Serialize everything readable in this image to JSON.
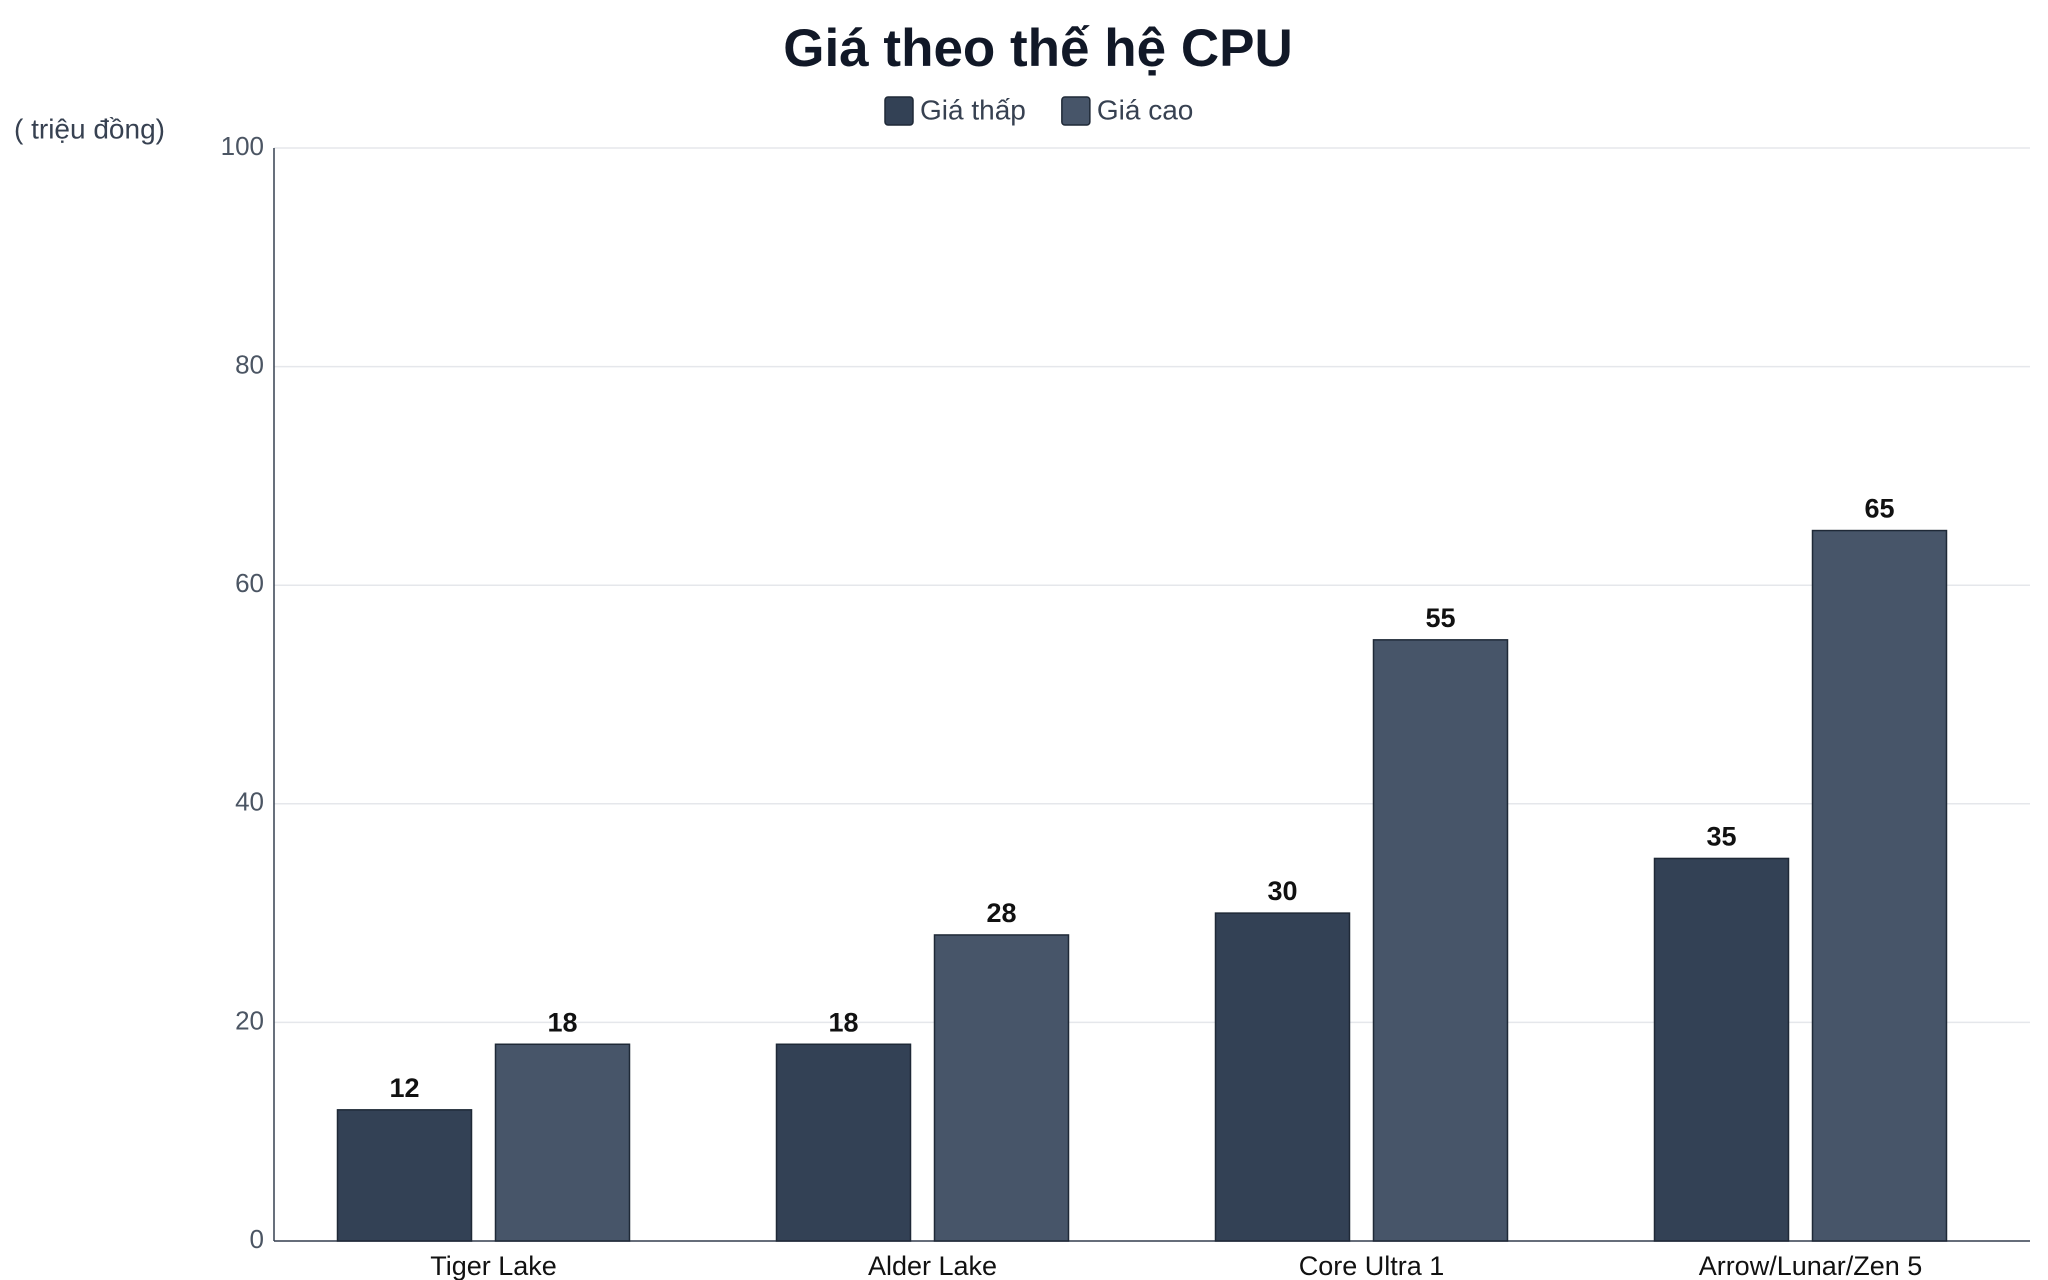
{
  "chart_data": {
    "type": "bar",
    "title": "Giá theo thế hệ CPU",
    "y_label": "( triệu đồng)",
    "categories": [
      "Tiger Lake",
      "Alder Lake",
      "Core Ultra 1",
      "Arrow/Lunar/Zen 5"
    ],
    "series": [
      {
        "name": "Giá thấp",
        "color": "#334155",
        "values": [
          12,
          18,
          30,
          35
        ]
      },
      {
        "name": "Giá cao",
        "color": "#475569",
        "values": [
          18,
          28,
          55,
          65
        ]
      }
    ],
    "ylim": [
      0,
      100
    ],
    "yticks": [
      0,
      20,
      40,
      60,
      80,
      100
    ],
    "grid": true,
    "legend": "top"
  }
}
